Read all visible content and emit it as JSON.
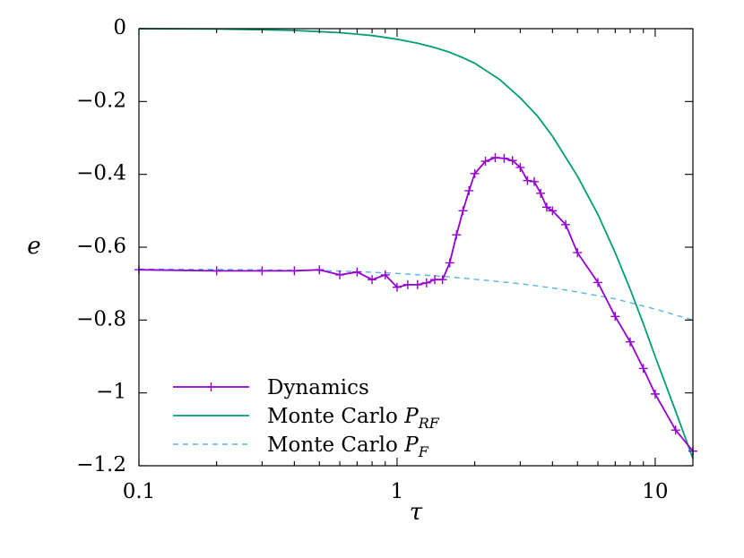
{
  "chart_data": {
    "type": "line",
    "title": "",
    "xlabel": "τ",
    "ylabel": "e",
    "xscale": "log",
    "xlim": [
      0.1,
      14
    ],
    "ylim": [
      -1.2,
      0
    ],
    "xticks": [
      0.1,
      1,
      10
    ],
    "xtick_labels": [
      "0.1",
      "1",
      "10"
    ],
    "yticks": [
      0,
      -0.2,
      -0.4,
      -0.6,
      -0.8,
      -1,
      -1.2
    ],
    "ytick_labels": [
      "0",
      "−0.2",
      "−0.4",
      "−0.6",
      "−0.8",
      "−1",
      "−1.2"
    ],
    "grid": false,
    "legend_position": "bottom-left",
    "series": [
      {
        "name": "Dynamics",
        "color": "#9400D3",
        "style": "solid",
        "markers": true,
        "x": [
          0.1,
          0.2,
          0.3,
          0.4,
          0.5,
          0.6,
          0.7,
          0.8,
          0.9,
          1.0,
          1.1,
          1.2,
          1.3,
          1.4,
          1.5,
          1.6,
          1.7,
          1.8,
          1.9,
          2.0,
          2.2,
          2.4,
          2.6,
          2.8,
          3.0,
          3.2,
          3.4,
          3.6,
          3.8,
          4.0,
          4.5,
          5.0,
          6.0,
          7.0,
          8.0,
          9.0,
          10.0,
          12.0,
          14.0
        ],
        "y": [
          -0.662,
          -0.665,
          -0.665,
          -0.665,
          -0.662,
          -0.676,
          -0.668,
          -0.689,
          -0.676,
          -0.71,
          -0.703,
          -0.703,
          -0.698,
          -0.689,
          -0.689,
          -0.643,
          -0.566,
          -0.5,
          -0.445,
          -0.398,
          -0.364,
          -0.354,
          -0.356,
          -0.362,
          -0.381,
          -0.417,
          -0.42,
          -0.452,
          -0.49,
          -0.5,
          -0.538,
          -0.615,
          -0.697,
          -0.79,
          -0.86,
          -0.933,
          -1.003,
          -1.102,
          -1.16
        ]
      },
      {
        "name": "Monte Carlo P_RF",
        "color": "#009E73",
        "style": "solid",
        "markers": false,
        "x": [
          0.1,
          0.2,
          0.3,
          0.4,
          0.5,
          0.6,
          0.7,
          0.8,
          0.9,
          1.0,
          1.2,
          1.4,
          1.6,
          1.8,
          2.0,
          2.5,
          3.0,
          3.5,
          4.0,
          5.0,
          6.0,
          7.0,
          8.0,
          9.0,
          10.0,
          12.0,
          14.0
        ],
        "y": [
          0,
          -0.001,
          -0.003,
          -0.005,
          -0.008,
          -0.011,
          -0.015,
          -0.019,
          -0.024,
          -0.029,
          -0.04,
          -0.052,
          -0.065,
          -0.08,
          -0.095,
          -0.14,
          -0.19,
          -0.24,
          -0.295,
          -0.405,
          -0.51,
          -0.615,
          -0.715,
          -0.81,
          -0.9,
          -1.05,
          -1.18
        ]
      },
      {
        "name": "Monte Carlo P_F",
        "color": "#56B4E9",
        "style": "dashed",
        "markers": false,
        "x": [
          0.1,
          0.2,
          0.3,
          0.5,
          0.7,
          1.0,
          1.5,
          2.0,
          3.0,
          4.0,
          5.0,
          7.0,
          10.0,
          14.0
        ],
        "y": [
          -0.66,
          -0.661,
          -0.662,
          -0.664,
          -0.667,
          -0.672,
          -0.68,
          -0.688,
          -0.7,
          -0.712,
          -0.723,
          -0.742,
          -0.77,
          -0.8
        ]
      }
    ],
    "legend": [
      {
        "label": "Dynamics",
        "math": ""
      },
      {
        "label": "Monte Carlo ",
        "math": "P",
        "sub": "RF"
      },
      {
        "label": "Monte Carlo ",
        "math": "P",
        "sub": "F"
      }
    ]
  }
}
